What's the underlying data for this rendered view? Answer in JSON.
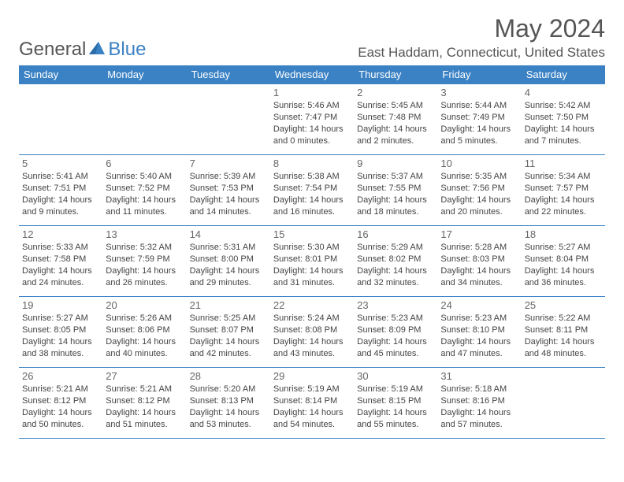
{
  "logo": {
    "general": "General",
    "blue": "Blue"
  },
  "title": "May 2024",
  "location": "East Haddam, Connecticut, United States",
  "colors": {
    "header_bg": "#3b82c4",
    "header_text": "#ffffff",
    "border": "#3b82c4",
    "text": "#444444",
    "title_text": "#555555"
  },
  "day_headers": [
    "Sunday",
    "Monday",
    "Tuesday",
    "Wednesday",
    "Thursday",
    "Friday",
    "Saturday"
  ],
  "weeks": [
    [
      null,
      null,
      null,
      {
        "day": "1",
        "sunrise": "5:46 AM",
        "sunset": "7:47 PM",
        "daylight": "14 hours and 0 minutes."
      },
      {
        "day": "2",
        "sunrise": "5:45 AM",
        "sunset": "7:48 PM",
        "daylight": "14 hours and 2 minutes."
      },
      {
        "day": "3",
        "sunrise": "5:44 AM",
        "sunset": "7:49 PM",
        "daylight": "14 hours and 5 minutes."
      },
      {
        "day": "4",
        "sunrise": "5:42 AM",
        "sunset": "7:50 PM",
        "daylight": "14 hours and 7 minutes."
      }
    ],
    [
      {
        "day": "5",
        "sunrise": "5:41 AM",
        "sunset": "7:51 PM",
        "daylight": "14 hours and 9 minutes."
      },
      {
        "day": "6",
        "sunrise": "5:40 AM",
        "sunset": "7:52 PM",
        "daylight": "14 hours and 11 minutes."
      },
      {
        "day": "7",
        "sunrise": "5:39 AM",
        "sunset": "7:53 PM",
        "daylight": "14 hours and 14 minutes."
      },
      {
        "day": "8",
        "sunrise": "5:38 AM",
        "sunset": "7:54 PM",
        "daylight": "14 hours and 16 minutes."
      },
      {
        "day": "9",
        "sunrise": "5:37 AM",
        "sunset": "7:55 PM",
        "daylight": "14 hours and 18 minutes."
      },
      {
        "day": "10",
        "sunrise": "5:35 AM",
        "sunset": "7:56 PM",
        "daylight": "14 hours and 20 minutes."
      },
      {
        "day": "11",
        "sunrise": "5:34 AM",
        "sunset": "7:57 PM",
        "daylight": "14 hours and 22 minutes."
      }
    ],
    [
      {
        "day": "12",
        "sunrise": "5:33 AM",
        "sunset": "7:58 PM",
        "daylight": "14 hours and 24 minutes."
      },
      {
        "day": "13",
        "sunrise": "5:32 AM",
        "sunset": "7:59 PM",
        "daylight": "14 hours and 26 minutes."
      },
      {
        "day": "14",
        "sunrise": "5:31 AM",
        "sunset": "8:00 PM",
        "daylight": "14 hours and 29 minutes."
      },
      {
        "day": "15",
        "sunrise": "5:30 AM",
        "sunset": "8:01 PM",
        "daylight": "14 hours and 31 minutes."
      },
      {
        "day": "16",
        "sunrise": "5:29 AM",
        "sunset": "8:02 PM",
        "daylight": "14 hours and 32 minutes."
      },
      {
        "day": "17",
        "sunrise": "5:28 AM",
        "sunset": "8:03 PM",
        "daylight": "14 hours and 34 minutes."
      },
      {
        "day": "18",
        "sunrise": "5:27 AM",
        "sunset": "8:04 PM",
        "daylight": "14 hours and 36 minutes."
      }
    ],
    [
      {
        "day": "19",
        "sunrise": "5:27 AM",
        "sunset": "8:05 PM",
        "daylight": "14 hours and 38 minutes."
      },
      {
        "day": "20",
        "sunrise": "5:26 AM",
        "sunset": "8:06 PM",
        "daylight": "14 hours and 40 minutes."
      },
      {
        "day": "21",
        "sunrise": "5:25 AM",
        "sunset": "8:07 PM",
        "daylight": "14 hours and 42 minutes."
      },
      {
        "day": "22",
        "sunrise": "5:24 AM",
        "sunset": "8:08 PM",
        "daylight": "14 hours and 43 minutes."
      },
      {
        "day": "23",
        "sunrise": "5:23 AM",
        "sunset": "8:09 PM",
        "daylight": "14 hours and 45 minutes."
      },
      {
        "day": "24",
        "sunrise": "5:23 AM",
        "sunset": "8:10 PM",
        "daylight": "14 hours and 47 minutes."
      },
      {
        "day": "25",
        "sunrise": "5:22 AM",
        "sunset": "8:11 PM",
        "daylight": "14 hours and 48 minutes."
      }
    ],
    [
      {
        "day": "26",
        "sunrise": "5:21 AM",
        "sunset": "8:12 PM",
        "daylight": "14 hours and 50 minutes."
      },
      {
        "day": "27",
        "sunrise": "5:21 AM",
        "sunset": "8:12 PM",
        "daylight": "14 hours and 51 minutes."
      },
      {
        "day": "28",
        "sunrise": "5:20 AM",
        "sunset": "8:13 PM",
        "daylight": "14 hours and 53 minutes."
      },
      {
        "day": "29",
        "sunrise": "5:19 AM",
        "sunset": "8:14 PM",
        "daylight": "14 hours and 54 minutes."
      },
      {
        "day": "30",
        "sunrise": "5:19 AM",
        "sunset": "8:15 PM",
        "daylight": "14 hours and 55 minutes."
      },
      {
        "day": "31",
        "sunrise": "5:18 AM",
        "sunset": "8:16 PM",
        "daylight": "14 hours and 57 minutes."
      },
      null
    ]
  ],
  "labels": {
    "sunrise": "Sunrise:",
    "sunset": "Sunset:",
    "daylight": "Daylight:"
  }
}
